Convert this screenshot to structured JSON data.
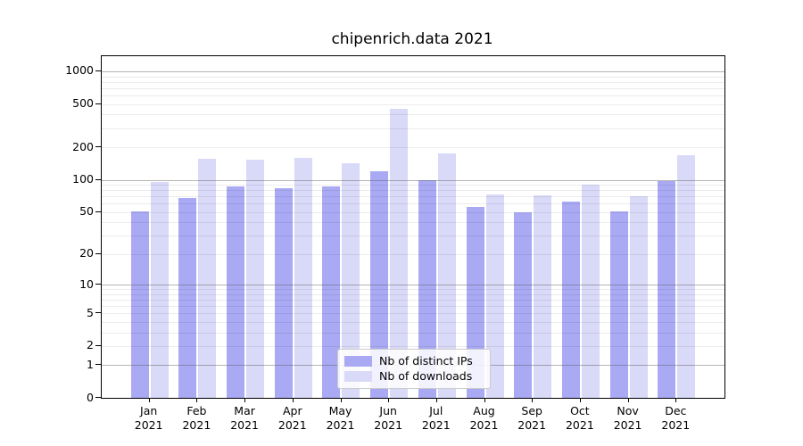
{
  "chart_data": {
    "type": "bar",
    "title": "chipenrich.data 2021",
    "year_label": "2021",
    "categories": [
      "Jan",
      "Feb",
      "Mar",
      "Apr",
      "May",
      "Jun",
      "Jul",
      "Aug",
      "Sep",
      "Oct",
      "Nov",
      "Dec"
    ],
    "series": [
      {
        "name": "Nb of distinct IPs",
        "color": "#a9a9f4",
        "values": [
          51,
          67,
          87,
          83,
          86,
          121,
          100,
          56,
          50,
          63,
          51,
          98
        ]
      },
      {
        "name": "Nb of downloads",
        "color": "#d9d9f8",
        "values": [
          95,
          156,
          154,
          158,
          143,
          454,
          176,
          73,
          72,
          90,
          70,
          170
        ]
      }
    ],
    "yticks": [
      0,
      1,
      2,
      5,
      10,
      20,
      50,
      100,
      200,
      500,
      1000
    ],
    "major_grid_values": [
      1,
      10,
      100,
      1000
    ],
    "yscale": "log1p",
    "ylim": [
      0,
      1380
    ],
    "xlabel": "",
    "ylabel": "",
    "grid": true,
    "legend_position": "inside-bottom-center"
  }
}
